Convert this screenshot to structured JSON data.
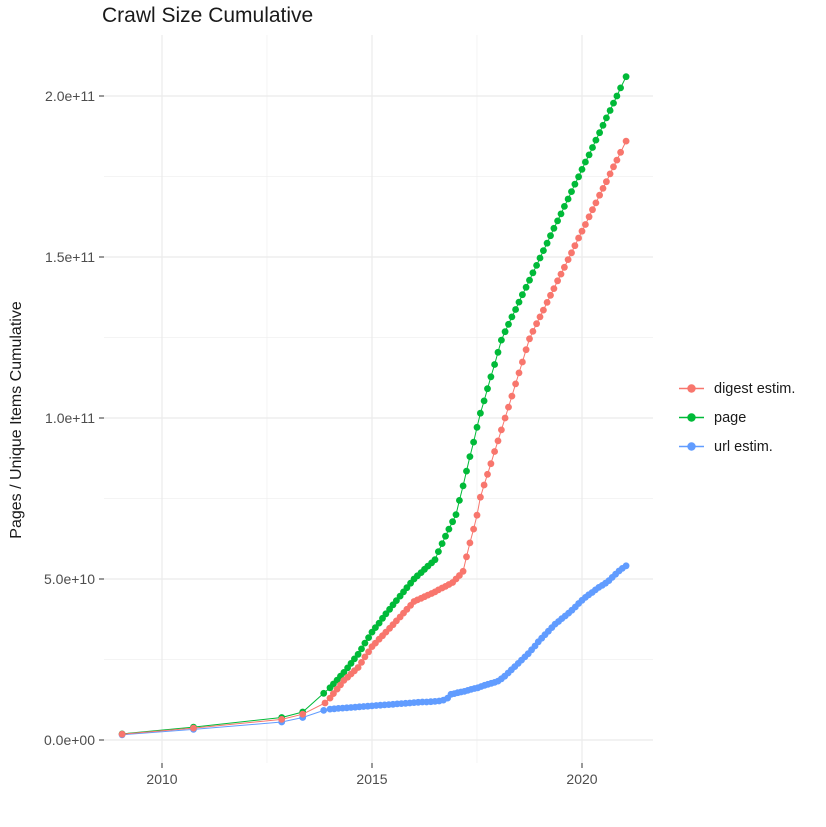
{
  "chart_data": {
    "type": "scatter",
    "title": "Crawl Size Cumulative",
    "xlabel": "",
    "ylabel": "Pages / Unique Items Cumulative",
    "value_unit": "billions (1e9) of pages / unique items",
    "grid": true,
    "legend_position": "right",
    "x_axis": {
      "range": [
        2008.45,
        2021.7
      ],
      "ticks": [
        {
          "v": 2010,
          "label": "2010"
        },
        {
          "v": 2015,
          "label": "2015"
        },
        {
          "v": 2020,
          "label": "2020"
        }
      ],
      "minor": [
        2012.5,
        2017.5
      ]
    },
    "y_axis": {
      "range": [
        -10,
        218
      ],
      "ticks": [
        {
          "v": 0,
          "label": "0.0e+00"
        },
        {
          "v": 50,
          "label": "5.0e+10"
        },
        {
          "v": 100,
          "label": "1.0e+11"
        },
        {
          "v": 150,
          "label": "1.5e+11"
        },
        {
          "v": 200,
          "label": "2.0e+11"
        }
      ],
      "minor": [
        25,
        75,
        125,
        175
      ]
    },
    "series": [
      {
        "name": "digest estim.",
        "color": "#F8766D",
        "points": [
          [
            2009.05,
            1.8
          ],
          [
            2010.75,
            3.7
          ],
          [
            2012.85,
            6.4
          ],
          [
            2013.35,
            8.0
          ],
          [
            2013.88,
            11.5
          ],
          [
            2014.0,
            13.0
          ],
          [
            2014.08,
            14.4
          ],
          [
            2014.17,
            15.8
          ],
          [
            2014.25,
            17.1
          ],
          [
            2014.33,
            18.5
          ],
          [
            2014.42,
            19.5
          ],
          [
            2014.5,
            20.5
          ],
          [
            2014.58,
            21.5
          ],
          [
            2014.67,
            22.5
          ],
          [
            2014.75,
            24.1
          ],
          [
            2014.83,
            25.8
          ],
          [
            2014.92,
            27.4
          ],
          [
            2015.0,
            29.0
          ],
          [
            2015.08,
            30.1
          ],
          [
            2015.17,
            31.3
          ],
          [
            2015.25,
            32.4
          ],
          [
            2015.33,
            33.5
          ],
          [
            2015.42,
            34.7
          ],
          [
            2015.5,
            35.8
          ],
          [
            2015.58,
            37.0
          ],
          [
            2015.67,
            38.2
          ],
          [
            2015.75,
            39.4
          ],
          [
            2015.83,
            40.6
          ],
          [
            2015.92,
            41.8
          ],
          [
            2016.0,
            43.0
          ],
          [
            2016.08,
            43.5
          ],
          [
            2016.17,
            44.0
          ],
          [
            2016.25,
            44.5
          ],
          [
            2016.33,
            45.0
          ],
          [
            2016.42,
            45.5
          ],
          [
            2016.5,
            46.0
          ],
          [
            2016.58,
            46.6
          ],
          [
            2016.67,
            47.2
          ],
          [
            2016.75,
            47.7
          ],
          [
            2016.83,
            48.3
          ],
          [
            2016.92,
            48.9
          ],
          [
            2017.0,
            50.0
          ],
          [
            2017.08,
            51.1
          ],
          [
            2017.17,
            52.4
          ],
          [
            2017.25,
            56.9
          ],
          [
            2017.33,
            61.2
          ],
          [
            2017.42,
            65.5
          ],
          [
            2017.5,
            69.8
          ],
          [
            2017.58,
            75.4
          ],
          [
            2017.67,
            79.2
          ],
          [
            2017.75,
            82.5
          ],
          [
            2017.83,
            85.8
          ],
          [
            2017.92,
            89.6
          ],
          [
            2018.0,
            92.9
          ],
          [
            2018.08,
            96.3
          ],
          [
            2018.17,
            100.0
          ],
          [
            2018.25,
            103.4
          ],
          [
            2018.33,
            106.8
          ],
          [
            2018.42,
            110.6
          ],
          [
            2018.5,
            114.0
          ],
          [
            2018.58,
            117.4
          ],
          [
            2018.67,
            121.2
          ],
          [
            2018.75,
            124.6
          ],
          [
            2018.83,
            126.9
          ],
          [
            2018.92,
            129.3
          ],
          [
            2019.0,
            131.4
          ],
          [
            2019.08,
            133.5
          ],
          [
            2019.17,
            135.9
          ],
          [
            2019.25,
            138.1
          ],
          [
            2019.33,
            140.2
          ],
          [
            2019.42,
            142.6
          ],
          [
            2019.5,
            144.7
          ],
          [
            2019.58,
            146.8
          ],
          [
            2019.67,
            149.2
          ],
          [
            2019.75,
            151.3
          ],
          [
            2019.83,
            153.5
          ],
          [
            2019.92,
            155.9
          ],
          [
            2020.0,
            158.0
          ],
          [
            2020.08,
            160.1
          ],
          [
            2020.17,
            162.5
          ],
          [
            2020.25,
            164.7
          ],
          [
            2020.33,
            166.8
          ],
          [
            2020.42,
            169.2
          ],
          [
            2020.5,
            171.3
          ],
          [
            2020.58,
            173.4
          ],
          [
            2020.67,
            175.8
          ],
          [
            2020.75,
            178.0
          ],
          [
            2020.83,
            180.1
          ],
          [
            2020.92,
            182.5
          ],
          [
            2021.05,
            186.0
          ]
        ]
      },
      {
        "name": "page",
        "color": "#00BA38",
        "points": [
          [
            2009.05,
            1.9
          ],
          [
            2010.75,
            4.0
          ],
          [
            2012.85,
            7.0
          ],
          [
            2013.35,
            8.7
          ],
          [
            2013.85,
            14.5
          ],
          [
            2014.0,
            16.2
          ],
          [
            2014.08,
            17.4
          ],
          [
            2014.17,
            18.6
          ],
          [
            2014.25,
            19.8
          ],
          [
            2014.33,
            21.0
          ],
          [
            2014.42,
            22.4
          ],
          [
            2014.5,
            23.8
          ],
          [
            2014.58,
            25.2
          ],
          [
            2014.67,
            26.6
          ],
          [
            2014.75,
            28.3
          ],
          [
            2014.83,
            30.1
          ],
          [
            2014.92,
            31.8
          ],
          [
            2015.0,
            33.5
          ],
          [
            2015.08,
            34.9
          ],
          [
            2015.17,
            36.3
          ],
          [
            2015.25,
            37.8
          ],
          [
            2015.33,
            39.2
          ],
          [
            2015.42,
            40.6
          ],
          [
            2015.5,
            42.0
          ],
          [
            2015.58,
            43.3
          ],
          [
            2015.67,
            44.7
          ],
          [
            2015.75,
            46.0
          ],
          [
            2015.83,
            47.3
          ],
          [
            2015.92,
            48.7
          ],
          [
            2016.0,
            50.0
          ],
          [
            2016.08,
            51.0
          ],
          [
            2016.17,
            52.0
          ],
          [
            2016.25,
            53.0
          ],
          [
            2016.33,
            54.0
          ],
          [
            2016.42,
            55.0
          ],
          [
            2016.5,
            56.0
          ],
          [
            2016.58,
            58.5
          ],
          [
            2016.67,
            61.0
          ],
          [
            2016.75,
            63.3
          ],
          [
            2016.83,
            65.5
          ],
          [
            2016.92,
            67.8
          ],
          [
            2017.0,
            70.0
          ],
          [
            2017.08,
            74.4
          ],
          [
            2017.17,
            78.9
          ],
          [
            2017.25,
            83.5
          ],
          [
            2017.33,
            88.0
          ],
          [
            2017.42,
            92.5
          ],
          [
            2017.5,
            97.1
          ],
          [
            2017.58,
            101.5
          ],
          [
            2017.67,
            105.3
          ],
          [
            2017.75,
            109.1
          ],
          [
            2017.83,
            112.8
          ],
          [
            2017.92,
            116.6
          ],
          [
            2018.0,
            120.4
          ],
          [
            2018.08,
            124.2
          ],
          [
            2018.17,
            126.8
          ],
          [
            2018.25,
            129.1
          ],
          [
            2018.33,
            131.4
          ],
          [
            2018.42,
            133.7
          ],
          [
            2018.5,
            136.0
          ],
          [
            2018.58,
            138.3
          ],
          [
            2018.67,
            140.6
          ],
          [
            2018.75,
            142.8
          ],
          [
            2018.83,
            145.1
          ],
          [
            2018.92,
            147.4
          ],
          [
            2019.0,
            149.7
          ],
          [
            2019.08,
            152.0
          ],
          [
            2019.17,
            154.3
          ],
          [
            2019.25,
            156.6
          ],
          [
            2019.33,
            158.9
          ],
          [
            2019.42,
            161.2
          ],
          [
            2019.5,
            163.4
          ],
          [
            2019.58,
            165.7
          ],
          [
            2019.67,
            168.0
          ],
          [
            2019.75,
            170.3
          ],
          [
            2019.83,
            172.6
          ],
          [
            2019.92,
            174.9
          ],
          [
            2020.0,
            177.2
          ],
          [
            2020.08,
            179.5
          ],
          [
            2020.17,
            181.7
          ],
          [
            2020.25,
            184.0
          ],
          [
            2020.33,
            186.3
          ],
          [
            2020.42,
            188.6
          ],
          [
            2020.5,
            190.9
          ],
          [
            2020.58,
            193.2
          ],
          [
            2020.67,
            195.5
          ],
          [
            2020.75,
            197.8
          ],
          [
            2020.83,
            200.0
          ],
          [
            2020.92,
            202.5
          ],
          [
            2021.05,
            206.0
          ]
        ]
      },
      {
        "name": "url estim.",
        "color": "#619CFF",
        "points": [
          [
            2009.05,
            1.6
          ],
          [
            2010.75,
            3.3
          ],
          [
            2012.85,
            5.6
          ],
          [
            2013.35,
            7.0
          ],
          [
            2013.85,
            9.2
          ],
          [
            2014.0,
            9.6
          ],
          [
            2014.1,
            9.7
          ],
          [
            2014.2,
            9.8
          ],
          [
            2014.3,
            9.9
          ],
          [
            2014.4,
            10.0
          ],
          [
            2014.5,
            10.1
          ],
          [
            2014.6,
            10.2
          ],
          [
            2014.7,
            10.3
          ],
          [
            2014.8,
            10.4
          ],
          [
            2014.9,
            10.5
          ],
          [
            2015.0,
            10.6
          ],
          [
            2015.1,
            10.7
          ],
          [
            2015.2,
            10.8
          ],
          [
            2015.3,
            10.9
          ],
          [
            2015.4,
            11.0
          ],
          [
            2015.5,
            11.1
          ],
          [
            2015.6,
            11.2
          ],
          [
            2015.7,
            11.3
          ],
          [
            2015.8,
            11.4
          ],
          [
            2015.9,
            11.5
          ],
          [
            2016.0,
            11.6
          ],
          [
            2016.1,
            11.7
          ],
          [
            2016.2,
            11.8
          ],
          [
            2016.3,
            11.8
          ],
          [
            2016.4,
            11.9
          ],
          [
            2016.5,
            12.0
          ],
          [
            2016.6,
            12.1
          ],
          [
            2016.7,
            12.4
          ],
          [
            2016.8,
            13.0
          ],
          [
            2016.88,
            14.2
          ],
          [
            2016.96,
            14.4
          ],
          [
            2017.04,
            14.7
          ],
          [
            2017.12,
            14.9
          ],
          [
            2017.2,
            15.1
          ],
          [
            2017.28,
            15.4
          ],
          [
            2017.36,
            15.7
          ],
          [
            2017.44,
            16.0
          ],
          [
            2017.52,
            16.2
          ],
          [
            2017.6,
            16.6
          ],
          [
            2017.68,
            17.0
          ],
          [
            2017.76,
            17.3
          ],
          [
            2017.84,
            17.6
          ],
          [
            2017.92,
            17.9
          ],
          [
            2018.0,
            18.3
          ],
          [
            2018.08,
            19.0
          ],
          [
            2018.16,
            19.8
          ],
          [
            2018.24,
            20.8
          ],
          [
            2018.32,
            21.8
          ],
          [
            2018.4,
            22.8
          ],
          [
            2018.48,
            23.8
          ],
          [
            2018.56,
            24.8
          ],
          [
            2018.64,
            25.8
          ],
          [
            2018.72,
            26.8
          ],
          [
            2018.8,
            28.0
          ],
          [
            2018.88,
            29.2
          ],
          [
            2018.96,
            30.5
          ],
          [
            2019.04,
            31.6
          ],
          [
            2019.12,
            32.7
          ],
          [
            2019.2,
            33.8
          ],
          [
            2019.28,
            34.9
          ],
          [
            2019.36,
            36.0
          ],
          [
            2019.44,
            36.8
          ],
          [
            2019.52,
            37.7
          ],
          [
            2019.6,
            38.5
          ],
          [
            2019.68,
            39.4
          ],
          [
            2019.76,
            40.3
          ],
          [
            2019.84,
            41.3
          ],
          [
            2019.92,
            42.4
          ],
          [
            2020.0,
            43.4
          ],
          [
            2020.08,
            44.3
          ],
          [
            2020.16,
            45.1
          ],
          [
            2020.24,
            45.8
          ],
          [
            2020.32,
            46.6
          ],
          [
            2020.4,
            47.4
          ],
          [
            2020.48,
            48.0
          ],
          [
            2020.56,
            48.7
          ],
          [
            2020.64,
            49.5
          ],
          [
            2020.72,
            50.5
          ],
          [
            2020.8,
            51.5
          ],
          [
            2020.88,
            52.5
          ],
          [
            2020.96,
            53.3
          ],
          [
            2021.05,
            54.1
          ]
        ]
      }
    ]
  },
  "colors": {
    "grid_major": "#EBEBEB",
    "grid_minor": "#F1F1F1",
    "axis_text": "#4D4D4D",
    "tick_mark": "#333333",
    "title_text": "#1A1A1A",
    "background": "#FFFFFF"
  }
}
